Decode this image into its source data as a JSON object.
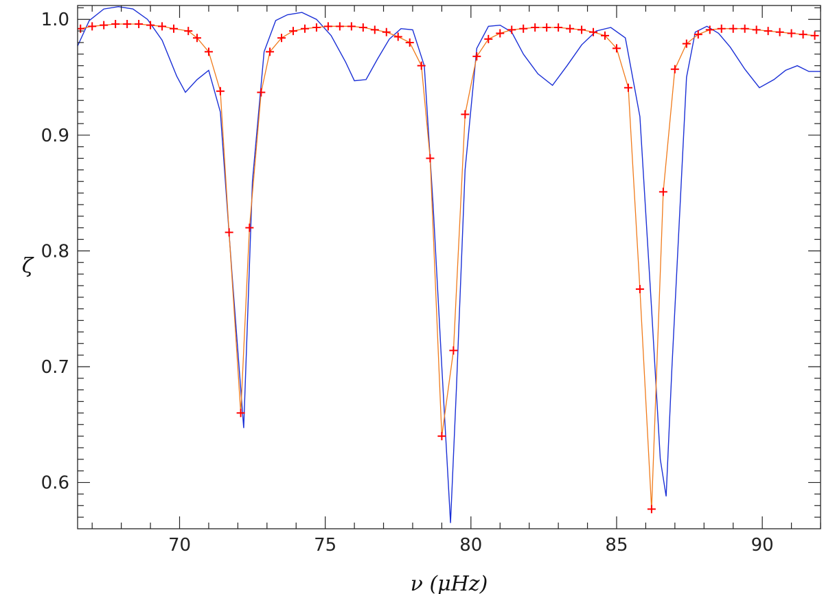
{
  "colors": {
    "frame": "#222222",
    "model_line": "#1a2fd6",
    "fit_line": "#f07a1a",
    "fit_marker": "#ff0000"
  },
  "chart_data": {
    "type": "line",
    "title": "",
    "xlabel": "ν (μHz)",
    "ylabel": "ζ",
    "xlim": [
      66.5,
      92.0
    ],
    "ylim": [
      0.56,
      1.012
    ],
    "grid": false,
    "legend": "none",
    "x_ticks": [
      70,
      75,
      80,
      85,
      90
    ],
    "x_tick_labels": [
      "70",
      "75",
      "80",
      "85",
      "90"
    ],
    "y_ticks": [
      0.6,
      0.7,
      0.8,
      0.9,
      1.0
    ],
    "y_tick_labels": [
      "0.6",
      "0.7",
      "0.8",
      "0.9",
      "1.0"
    ],
    "series": [
      {
        "style": "line",
        "color": "#1a2fd6",
        "x": [
          66.5,
          66.9,
          67.4,
          67.9,
          68.4,
          68.9,
          69.4,
          69.9,
          70.2,
          70.6,
          71.0,
          71.4,
          71.8,
          72.2,
          72.5,
          72.9,
          73.3,
          73.7,
          74.2,
          74.7,
          75.2,
          75.7,
          76.0,
          76.4,
          76.8,
          77.2,
          77.6,
          78.0,
          78.4,
          78.7,
          79.0,
          79.3,
          79.5,
          79.8,
          80.2,
          80.6,
          81.0,
          81.4,
          81.8,
          82.3,
          82.8,
          83.3,
          83.8,
          84.3,
          84.8,
          85.3,
          85.8,
          86.2,
          86.5,
          86.7,
          86.9,
          87.1,
          87.4,
          87.7,
          88.1,
          88.5,
          88.9,
          89.4,
          89.9,
          90.4,
          90.8,
          91.2,
          91.6,
          92.0
        ],
        "y": [
          0.977,
          0.999,
          1.009,
          1.011,
          1.009,
          1.0,
          0.982,
          0.951,
          0.937,
          0.948,
          0.956,
          0.92,
          0.78,
          0.647,
          0.86,
          0.972,
          0.999,
          1.004,
          1.006,
          1.0,
          0.986,
          0.963,
          0.947,
          0.948,
          0.966,
          0.983,
          0.992,
          0.991,
          0.96,
          0.84,
          0.7,
          0.565,
          0.68,
          0.87,
          0.975,
          0.994,
          0.995,
          0.989,
          0.97,
          0.953,
          0.943,
          0.96,
          0.978,
          0.99,
          0.993,
          0.984,
          0.916,
          0.75,
          0.62,
          0.588,
          0.7,
          0.8,
          0.95,
          0.989,
          0.994,
          0.988,
          0.976,
          0.957,
          0.941,
          0.948,
          0.956,
          0.96,
          0.955,
          0.955
        ]
      },
      {
        "style": "line+markers",
        "color": "#f07a1a",
        "marker": "+",
        "marker_color": "#ff0000",
        "x": [
          66.6,
          67.0,
          67.4,
          67.8,
          68.2,
          68.6,
          69.0,
          69.4,
          69.8,
          70.3,
          70.6,
          71.0,
          71.4,
          71.7,
          72.1,
          72.4,
          72.8,
          73.1,
          73.5,
          73.9,
          74.3,
          74.7,
          75.1,
          75.5,
          75.9,
          76.3,
          76.7,
          77.1,
          77.5,
          77.9,
          78.3,
          78.6,
          79.0,
          79.4,
          79.8,
          80.2,
          80.6,
          81.0,
          81.4,
          81.8,
          82.2,
          82.6,
          83.0,
          83.4,
          83.8,
          84.2,
          84.6,
          85.0,
          85.4,
          85.8,
          86.2,
          86.6,
          87.0,
          87.4,
          87.8,
          88.2,
          88.6,
          89.0,
          89.4,
          89.8,
          90.2,
          90.6,
          91.0,
          91.4,
          91.8
        ],
        "y": [
          0.992,
          0.994,
          0.995,
          0.996,
          0.996,
          0.996,
          0.995,
          0.994,
          0.992,
          0.99,
          0.984,
          0.972,
          0.938,
          0.816,
          0.66,
          0.82,
          0.937,
          0.972,
          0.984,
          0.99,
          0.992,
          0.993,
          0.994,
          0.994,
          0.994,
          0.993,
          0.991,
          0.989,
          0.985,
          0.98,
          0.96,
          0.88,
          0.64,
          0.714,
          0.918,
          0.968,
          0.983,
          0.988,
          0.991,
          0.992,
          0.993,
          0.993,
          0.993,
          0.992,
          0.991,
          0.989,
          0.986,
          0.975,
          0.941,
          0.767,
          0.577,
          0.851,
          0.957,
          0.979,
          0.987,
          0.991,
          0.992,
          0.992,
          0.992,
          0.991,
          0.99,
          0.989,
          0.988,
          0.987,
          0.986
        ]
      }
    ]
  }
}
